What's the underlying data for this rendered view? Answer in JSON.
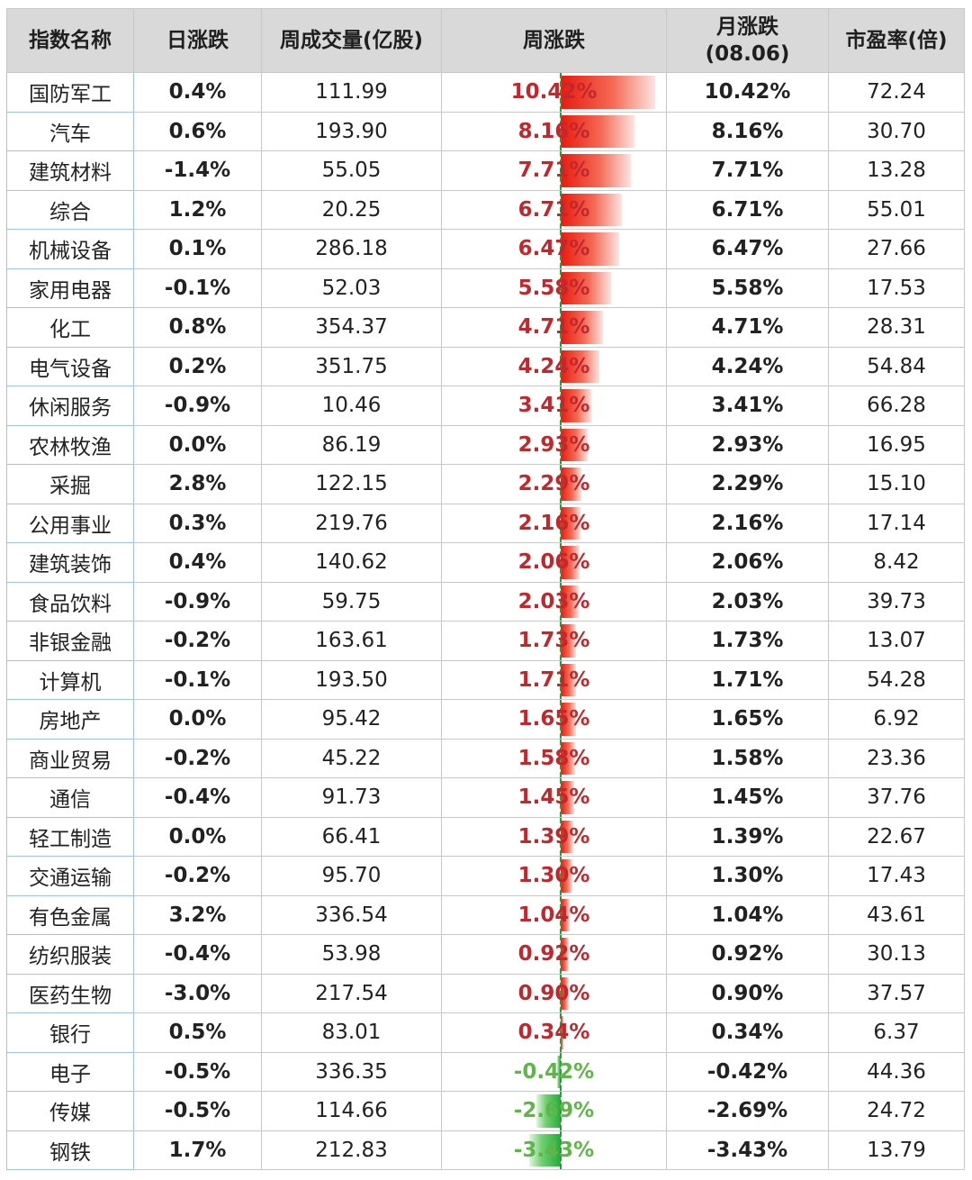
{
  "table": {
    "headers": {
      "name": "指数名称",
      "daily": "日涨跌",
      "volume": "周成交量(亿股)",
      "weekly": "周涨跌",
      "monthly_line1": "月涨跌",
      "monthly_line2": "(08.06)",
      "pe": "市盈率(倍)"
    },
    "rows": [
      {
        "name": "国防军工",
        "daily": "0.4%",
        "volume": "111.99",
        "weekly": "10.42%",
        "weekly_value": 10.42,
        "monthly": "10.42%",
        "pe": "72.24"
      },
      {
        "name": "汽车",
        "daily": "0.6%",
        "volume": "193.90",
        "weekly": "8.16%",
        "weekly_value": 8.16,
        "monthly": "8.16%",
        "pe": "30.70"
      },
      {
        "name": "建筑材料",
        "daily": "-1.4%",
        "volume": "55.05",
        "weekly": "7.71%",
        "weekly_value": 7.71,
        "monthly": "7.71%",
        "pe": "13.28"
      },
      {
        "name": "综合",
        "daily": "1.2%",
        "volume": "20.25",
        "weekly": "6.71%",
        "weekly_value": 6.71,
        "monthly": "6.71%",
        "pe": "55.01"
      },
      {
        "name": "机械设备",
        "daily": "0.1%",
        "volume": "286.18",
        "weekly": "6.47%",
        "weekly_value": 6.47,
        "monthly": "6.47%",
        "pe": "27.66"
      },
      {
        "name": "家用电器",
        "daily": "-0.1%",
        "volume": "52.03",
        "weekly": "5.58%",
        "weekly_value": 5.58,
        "monthly": "5.58%",
        "pe": "17.53"
      },
      {
        "name": "化工",
        "daily": "0.8%",
        "volume": "354.37",
        "weekly": "4.71%",
        "weekly_value": 4.71,
        "monthly": "4.71%",
        "pe": "28.31"
      },
      {
        "name": "电气设备",
        "daily": "0.2%",
        "volume": "351.75",
        "weekly": "4.24%",
        "weekly_value": 4.24,
        "monthly": "4.24%",
        "pe": "54.84"
      },
      {
        "name": "休闲服务",
        "daily": "-0.9%",
        "volume": "10.46",
        "weekly": "3.41%",
        "weekly_value": 3.41,
        "monthly": "3.41%",
        "pe": "66.28"
      },
      {
        "name": "农林牧渔",
        "daily": "0.0%",
        "volume": "86.19",
        "weekly": "2.93%",
        "weekly_value": 2.93,
        "monthly": "2.93%",
        "pe": "16.95"
      },
      {
        "name": "采掘",
        "daily": "2.8%",
        "volume": "122.15",
        "weekly": "2.29%",
        "weekly_value": 2.29,
        "monthly": "2.29%",
        "pe": "15.10"
      },
      {
        "name": "公用事业",
        "daily": "0.3%",
        "volume": "219.76",
        "weekly": "2.16%",
        "weekly_value": 2.16,
        "monthly": "2.16%",
        "pe": "17.14"
      },
      {
        "name": "建筑装饰",
        "daily": "0.4%",
        "volume": "140.62",
        "weekly": "2.06%",
        "weekly_value": 2.06,
        "monthly": "2.06%",
        "pe": "8.42"
      },
      {
        "name": "食品饮料",
        "daily": "-0.9%",
        "volume": "59.75",
        "weekly": "2.03%",
        "weekly_value": 2.03,
        "monthly": "2.03%",
        "pe": "39.73"
      },
      {
        "name": "非银金融",
        "daily": "-0.2%",
        "volume": "163.61",
        "weekly": "1.73%",
        "weekly_value": 1.73,
        "monthly": "1.73%",
        "pe": "13.07"
      },
      {
        "name": "计算机",
        "daily": "-0.1%",
        "volume": "193.50",
        "weekly": "1.71%",
        "weekly_value": 1.71,
        "monthly": "1.71%",
        "pe": "54.28"
      },
      {
        "name": "房地产",
        "daily": "0.0%",
        "volume": "95.42",
        "weekly": "1.65%",
        "weekly_value": 1.65,
        "monthly": "1.65%",
        "pe": "6.92"
      },
      {
        "name": "商业贸易",
        "daily": "-0.2%",
        "volume": "45.22",
        "weekly": "1.58%",
        "weekly_value": 1.58,
        "monthly": "1.58%",
        "pe": "23.36"
      },
      {
        "name": "通信",
        "daily": "-0.4%",
        "volume": "91.73",
        "weekly": "1.45%",
        "weekly_value": 1.45,
        "monthly": "1.45%",
        "pe": "37.76"
      },
      {
        "name": "轻工制造",
        "daily": "0.0%",
        "volume": "66.41",
        "weekly": "1.39%",
        "weekly_value": 1.39,
        "monthly": "1.39%",
        "pe": "22.67"
      },
      {
        "name": "交通运输",
        "daily": "-0.2%",
        "volume": "95.70",
        "weekly": "1.30%",
        "weekly_value": 1.3,
        "monthly": "1.30%",
        "pe": "17.43"
      },
      {
        "name": "有色金属",
        "daily": "3.2%",
        "volume": "336.54",
        "weekly": "1.04%",
        "weekly_value": 1.04,
        "monthly": "1.04%",
        "pe": "43.61"
      },
      {
        "name": "纺织服装",
        "daily": "-0.4%",
        "volume": "53.98",
        "weekly": "0.92%",
        "weekly_value": 0.92,
        "monthly": "0.92%",
        "pe": "30.13"
      },
      {
        "name": "医药生物",
        "daily": "-3.0%",
        "volume": "217.54",
        "weekly": "0.90%",
        "weekly_value": 0.9,
        "monthly": "0.90%",
        "pe": "37.57"
      },
      {
        "name": "银行",
        "daily": "0.5%",
        "volume": "83.01",
        "weekly": "0.34%",
        "weekly_value": 0.34,
        "monthly": "0.34%",
        "pe": "6.37"
      },
      {
        "name": "电子",
        "daily": "-0.5%",
        "volume": "336.35",
        "weekly": "-0.42%",
        "weekly_value": -0.42,
        "monthly": "-0.42%",
        "pe": "44.36"
      },
      {
        "name": "传媒",
        "daily": "-0.5%",
        "volume": "114.66",
        "weekly": "-2.69%",
        "weekly_value": -2.69,
        "monthly": "-2.69%",
        "pe": "24.72"
      },
      {
        "name": "钢铁",
        "daily": "1.7%",
        "volume": "212.83",
        "weekly": "-3.43%",
        "weekly_value": -3.43,
        "monthly": "-3.43%",
        "pe": "13.79"
      }
    ]
  },
  "colors": {
    "up": "#c0282d",
    "down": "#5fb548",
    "header_bg": "#d9d9d9",
    "bar_positive": "#e81a0e",
    "bar_negative": "#22ad3a"
  }
}
